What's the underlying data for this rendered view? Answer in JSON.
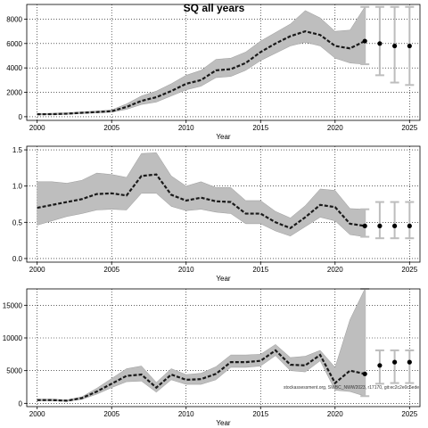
{
  "figure": {
    "title": "SQ all years",
    "credit": "stockassessment.org, SWBC_NWW2023, r17170, git:ec2c2e0c6ede"
  },
  "colors": {
    "band": "#bebebe",
    "line": "#1a1a1a",
    "whisker": "#bdbdbd",
    "dot": "#000000"
  },
  "chart_data": [
    {
      "type": "line",
      "name": "ssb",
      "xlabel": "Year",
      "ylabel": "",
      "xlim": [
        1999.3,
        2025.7
      ],
      "ylim": [
        -300,
        9200
      ],
      "x_ticks": [
        2000,
        2005,
        2010,
        2015,
        2020,
        2025
      ],
      "y_ticks": [
        0,
        2000,
        4000,
        6000,
        8000
      ],
      "y_tick_labels": [
        "0",
        "2000",
        "4000",
        "6000",
        "8000"
      ],
      "grid": true,
      "years": [
        2000,
        2001,
        2002,
        2003,
        2004,
        2005,
        2006,
        2007,
        2008,
        2009,
        2010,
        2011,
        2012,
        2013,
        2014,
        2015,
        2016,
        2017,
        2018,
        2019,
        2020,
        2021,
        2022
      ],
      "estimate": [
        200,
        210,
        250,
        320,
        380,
        450,
        800,
        1300,
        1600,
        2100,
        2700,
        3000,
        3800,
        3900,
        4400,
        5300,
        6000,
        6600,
        7000,
        6700,
        5800,
        5600,
        6200
      ],
      "lower": [
        150,
        160,
        190,
        260,
        310,
        370,
        600,
        1000,
        1200,
        1700,
        2200,
        2500,
        3200,
        3300,
        3800,
        4600,
        5200,
        5800,
        6100,
        5800,
        4800,
        4400,
        4300
      ],
      "upper": [
        270,
        280,
        320,
        400,
        470,
        560,
        1050,
        1700,
        2100,
        2700,
        3400,
        3800,
        4700,
        4800,
        5300,
        6200,
        6900,
        7600,
        8700,
        8100,
        7000,
        7100,
        9000
      ],
      "forecast_years": [
        2023,
        2024,
        2025
      ],
      "forecast": [
        6000,
        5800,
        5800
      ],
      "forecast_lower": [
        3400,
        2800,
        2600
      ],
      "forecast_upper": [
        9000,
        9000,
        9000
      ]
    },
    {
      "type": "line",
      "name": "fbar",
      "xlabel": "Year",
      "ylabel": "",
      "xlim": [
        1999.3,
        2025.7
      ],
      "ylim": [
        -0.05,
        1.55
      ],
      "x_ticks": [
        2000,
        2005,
        2010,
        2015,
        2020,
        2025
      ],
      "y_ticks": [
        0.0,
        0.5,
        1.0,
        1.5
      ],
      "y_tick_labels": [
        "0.0",
        "0.5",
        "1.0",
        "1.5"
      ],
      "grid": true,
      "years": [
        2000,
        2001,
        2002,
        2003,
        2004,
        2005,
        2006,
        2007,
        2008,
        2009,
        2010,
        2011,
        2012,
        2013,
        2014,
        2015,
        2016,
        2017,
        2018,
        2019,
        2020,
        2021,
        2022
      ],
      "estimate": [
        0.7,
        0.74,
        0.78,
        0.82,
        0.89,
        0.9,
        0.87,
        1.14,
        1.16,
        0.88,
        0.8,
        0.84,
        0.79,
        0.78,
        0.62,
        0.62,
        0.5,
        0.42,
        0.57,
        0.74,
        0.71,
        0.48,
        0.45
      ],
      "lower": [
        0.46,
        0.52,
        0.58,
        0.62,
        0.67,
        0.68,
        0.67,
        0.9,
        0.9,
        0.72,
        0.66,
        0.68,
        0.64,
        0.62,
        0.48,
        0.48,
        0.38,
        0.31,
        0.44,
        0.57,
        0.52,
        0.33,
        0.3
      ],
      "upper": [
        1.06,
        1.06,
        1.04,
        1.08,
        1.18,
        1.16,
        1.12,
        1.45,
        1.46,
        1.14,
        1.0,
        1.06,
        0.98,
        0.98,
        0.8,
        0.8,
        0.65,
        0.56,
        0.73,
        0.96,
        0.94,
        0.69,
        0.68
      ],
      "forecast_years": [
        2023,
        2024,
        2025
      ],
      "forecast": [
        0.45,
        0.45,
        0.45
      ],
      "forecast_lower": [
        0.28,
        0.28,
        0.28
      ],
      "forecast_upper": [
        0.78,
        0.78,
        0.78
      ]
    },
    {
      "type": "line",
      "name": "recruitment",
      "xlabel": "Year",
      "ylabel": "",
      "xlim": [
        1999.3,
        2025.7
      ],
      "ylim": [
        -500,
        17500
      ],
      "x_ticks": [
        2000,
        2005,
        2010,
        2015,
        2020,
        2025
      ],
      "y_ticks": [
        0,
        5000,
        10000,
        15000
      ],
      "y_tick_labels": [
        "0",
        "5000",
        "10000",
        "15000"
      ],
      "grid": true,
      "years": [
        2000,
        2001,
        2002,
        2003,
        2004,
        2005,
        2006,
        2007,
        2008,
        2009,
        2010,
        2011,
        2012,
        2013,
        2014,
        2015,
        2016,
        2017,
        2018,
        2019,
        2020,
        2021,
        2022
      ],
      "estimate": [
        500,
        500,
        400,
        800,
        1800,
        3000,
        4200,
        4400,
        2400,
        4400,
        3600,
        3700,
        4500,
        6300,
        6300,
        6500,
        8100,
        5900,
        5800,
        7400,
        3100,
        5000,
        4500
      ],
      "lower": [
        380,
        380,
        300,
        600,
        1400,
        2400,
        3300,
        3400,
        1700,
        3600,
        2900,
        2900,
        3600,
        5500,
        5500,
        5700,
        7300,
        5000,
        4800,
        6500,
        2000,
        1800,
        1100
      ],
      "upper": [
        650,
        650,
        520,
        1000,
        2300,
        3800,
        5300,
        5700,
        3200,
        5300,
        4400,
        4600,
        5600,
        7400,
        7400,
        7500,
        9000,
        7000,
        7200,
        8100,
        5500,
        12800,
        17500
      ],
      "forecast_years": [
        2023,
        2024,
        2025
      ],
      "forecast": [
        5800,
        6300,
        6300
      ],
      "forecast_lower": [
        3000,
        3100,
        3100
      ],
      "forecast_upper": [
        8100,
        8100,
        8100
      ]
    }
  ]
}
